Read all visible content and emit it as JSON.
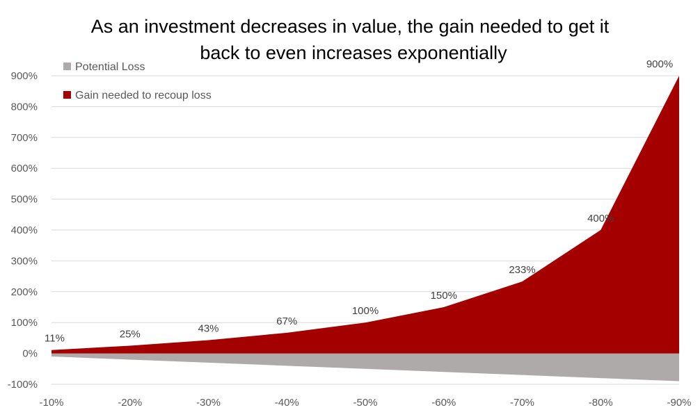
{
  "chart_data": {
    "type": "area",
    "title_lines": [
      "As an investment decreases in value, the gain needed to get it",
      "back to even increases exponentially"
    ],
    "categories": [
      "-10%",
      "-20%",
      "-30%",
      "-40%",
      "-50%",
      "-60%",
      "-70%",
      "-80%",
      "-90%"
    ],
    "series": [
      {
        "name": "Potential Loss",
        "values": [
          -10,
          -20,
          -30,
          -40,
          -50,
          -60,
          -70,
          -80,
          -90
        ],
        "color": "#aeaaaa",
        "data_labels": false
      },
      {
        "name": "Gain needed to recoup loss",
        "values": [
          11,
          25,
          43,
          67,
          100,
          150,
          233,
          400,
          900
        ],
        "color": "#a50000",
        "data_labels": true,
        "data_label_texts": [
          "11%",
          "25%",
          "43%",
          "67%",
          "100%",
          "150%",
          "233%",
          "400%",
          "900%"
        ]
      }
    ],
    "y_ticks": [
      -100,
      0,
      100,
      200,
      300,
      400,
      500,
      600,
      700,
      800,
      900
    ],
    "y_tick_labels": [
      "-100%",
      "0%",
      "100%",
      "200%",
      "300%",
      "400%",
      "500%",
      "600%",
      "700%",
      "800%",
      "900%"
    ],
    "ylim": [
      -100,
      900
    ],
    "grid": "horizontal",
    "legend_position": "top-left",
    "colors": {
      "grid": "#d9d9d9",
      "tick_text": "#595959",
      "label_text": "#404040"
    }
  }
}
